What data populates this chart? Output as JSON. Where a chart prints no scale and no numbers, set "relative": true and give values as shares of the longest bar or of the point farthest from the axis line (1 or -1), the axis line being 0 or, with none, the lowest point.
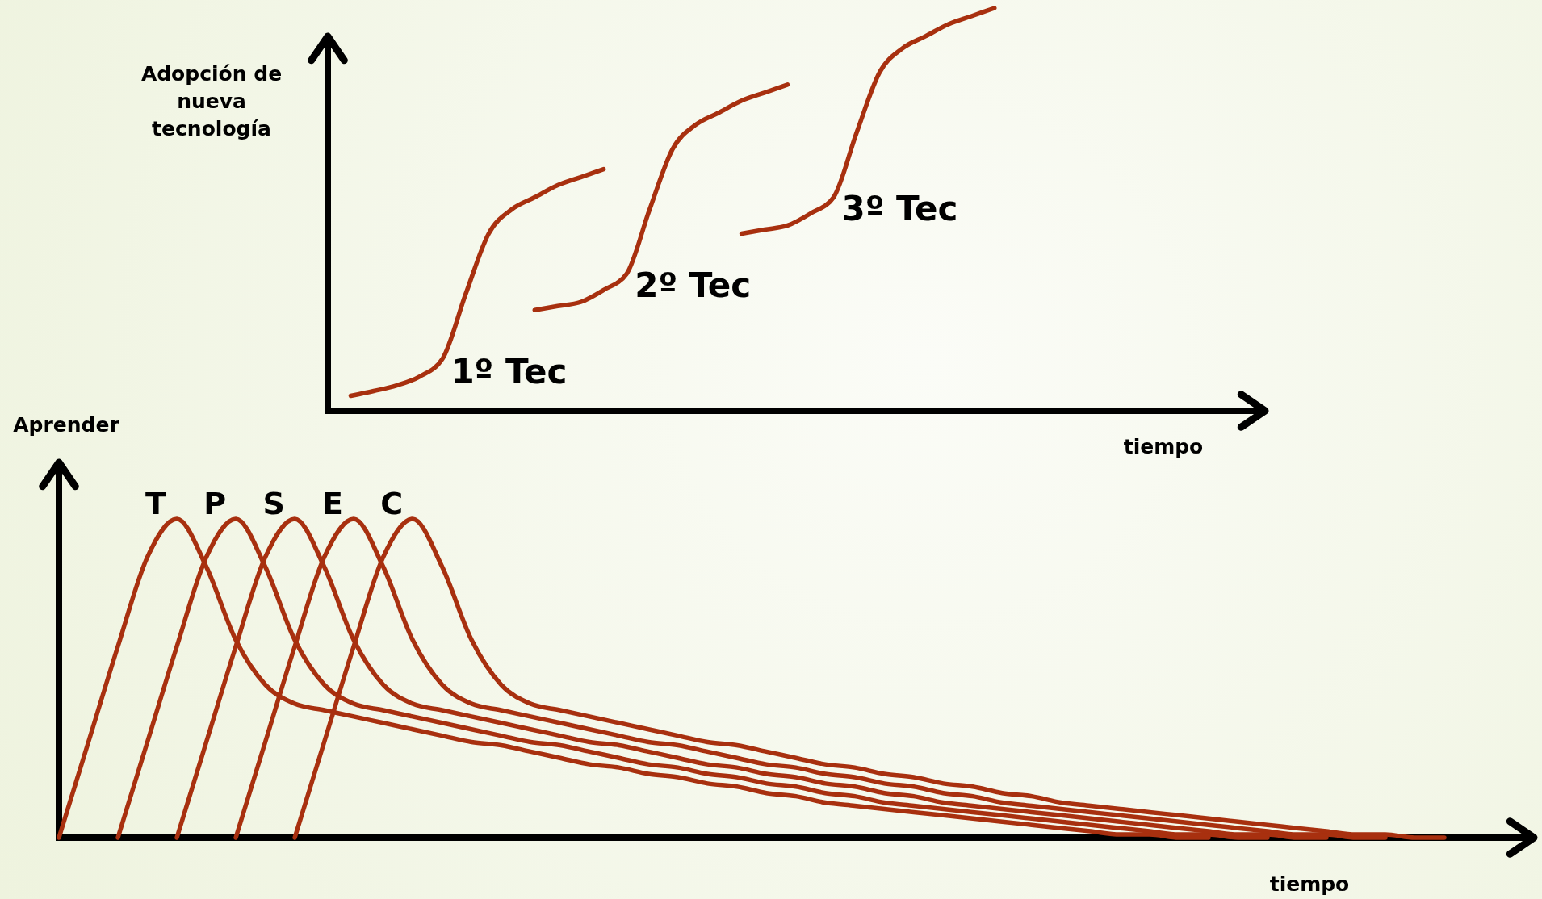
{
  "chart_data": [
    {
      "type": "line",
      "relative": true,
      "ylabel": "Adopción de nueva tecnología",
      "xlabel": "tiempo",
      "categories": [
        null,
        null,
        null,
        null,
        null,
        null,
        null,
        null,
        null,
        null,
        null,
        null,
        null,
        null,
        null,
        null,
        null,
        null,
        null,
        null,
        null,
        null,
        null,
        null,
        null,
        null,
        null,
        null,
        null,
        null,
        null,
        null,
        null,
        null,
        null,
        null,
        null,
        null,
        null,
        null,
        null
      ],
      "series": [
        {
          "name": "1º Tec",
          "color": "#a8300f",
          "values": [
            null,
            0.037,
            0.049,
            0.063,
            0.085,
            0.13,
            0.29,
            0.44,
            0.5,
            0.53,
            0.56,
            0.58,
            0.6,
            null,
            null,
            null,
            null,
            null,
            null,
            null,
            null,
            null,
            null,
            null,
            null,
            null,
            null,
            null,
            null,
            null,
            null,
            null,
            null,
            null,
            null,
            null,
            null,
            null,
            null,
            null,
            null
          ]
        },
        {
          "name": "2º Tec",
          "color": "#a8300f",
          "values": [
            null,
            null,
            null,
            null,
            null,
            null,
            null,
            null,
            null,
            0.25,
            0.26,
            0.27,
            0.3,
            0.34,
            0.5,
            0.65,
            0.71,
            0.74,
            0.77,
            0.79,
            0.81,
            null,
            null,
            null,
            null,
            null,
            null,
            null,
            null,
            null,
            null,
            null,
            null,
            null,
            null,
            null,
            null,
            null,
            null,
            null,
            null
          ]
        },
        {
          "name": "3º Tec",
          "color": "#a8300f",
          "values": [
            null,
            null,
            null,
            null,
            null,
            null,
            null,
            null,
            null,
            null,
            null,
            null,
            null,
            null,
            null,
            null,
            null,
            null,
            0.44,
            0.45,
            0.46,
            0.49,
            0.53,
            0.69,
            0.84,
            0.9,
            0.93,
            0.96,
            0.98,
            1.0,
            null,
            null,
            null,
            null,
            null,
            null,
            null,
            null,
            null,
            null,
            null
          ]
        }
      ]
    },
    {
      "type": "line",
      "relative": true,
      "ylabel": "Aprender",
      "xlabel": "tiempo",
      "categories": [
        null,
        null,
        null,
        null,
        null,
        null,
        null,
        null,
        null,
        null,
        null,
        null,
        null,
        null,
        null,
        null,
        null,
        null,
        null,
        null,
        null,
        null,
        null,
        null,
        null,
        null,
        null,
        null,
        null,
        null,
        null,
        null,
        null,
        null,
        null,
        null,
        null,
        null,
        null,
        null,
        null,
        null,
        null,
        null,
        null,
        null,
        null,
        null,
        null,
        null
      ],
      "series": [
        {
          "name": "T",
          "color": "#a8300f",
          "values": [
            0,
            0.3,
            0.6,
            0.88,
            1,
            0.85,
            0.62,
            0.48,
            0.42,
            0.4,
            0.38,
            0.36,
            0.34,
            0.32,
            0.3,
            0.29,
            0.27,
            0.25,
            0.23,
            0.22,
            0.2,
            0.19,
            0.17,
            0.16,
            0.14,
            0.13,
            0.11,
            0.1,
            0.09,
            0.08,
            0.07,
            0.06,
            0.05,
            0.04,
            0.03,
            0.02,
            0.01,
            0.01,
            0,
            0,
            null,
            null,
            null,
            null,
            null,
            null,
            null,
            null,
            null,
            null
          ]
        },
        {
          "name": "P",
          "color": "#a8300f",
          "values": [
            null,
            null,
            0,
            0.3,
            0.6,
            0.88,
            1,
            0.85,
            0.62,
            0.48,
            0.42,
            0.4,
            0.38,
            0.36,
            0.34,
            0.32,
            0.3,
            0.29,
            0.27,
            0.25,
            0.23,
            0.22,
            0.2,
            0.19,
            0.17,
            0.16,
            0.14,
            0.13,
            0.11,
            0.1,
            0.09,
            0.08,
            0.07,
            0.06,
            0.05,
            0.04,
            0.03,
            0.02,
            0.01,
            0.01,
            0,
            0,
            null,
            null,
            null,
            null,
            null,
            null,
            null,
            null
          ]
        },
        {
          "name": "S",
          "color": "#a8300f",
          "values": [
            null,
            null,
            null,
            null,
            0,
            0.3,
            0.6,
            0.88,
            1,
            0.85,
            0.62,
            0.48,
            0.42,
            0.4,
            0.38,
            0.36,
            0.34,
            0.32,
            0.3,
            0.29,
            0.27,
            0.25,
            0.23,
            0.22,
            0.2,
            0.19,
            0.17,
            0.16,
            0.14,
            0.13,
            0.11,
            0.1,
            0.09,
            0.08,
            0.07,
            0.06,
            0.05,
            0.04,
            0.03,
            0.02,
            0.01,
            0.01,
            0,
            0,
            null,
            null,
            null,
            null,
            null,
            null
          ]
        },
        {
          "name": "E",
          "color": "#a8300f",
          "values": [
            null,
            null,
            null,
            null,
            null,
            null,
            0,
            0.3,
            0.6,
            0.88,
            1,
            0.85,
            0.62,
            0.48,
            0.42,
            0.4,
            0.38,
            0.36,
            0.34,
            0.32,
            0.3,
            0.29,
            0.27,
            0.25,
            0.23,
            0.22,
            0.2,
            0.19,
            0.17,
            0.16,
            0.14,
            0.13,
            0.11,
            0.1,
            0.09,
            0.08,
            0.07,
            0.06,
            0.05,
            0.04,
            0.03,
            0.02,
            0.01,
            0.01,
            0,
            0,
            null,
            null,
            null,
            null
          ]
        },
        {
          "name": "C",
          "color": "#a8300f",
          "values": [
            null,
            null,
            null,
            null,
            null,
            null,
            null,
            null,
            0,
            0.3,
            0.6,
            0.88,
            1,
            0.85,
            0.62,
            0.48,
            0.42,
            0.4,
            0.38,
            0.36,
            0.34,
            0.32,
            0.3,
            0.29,
            0.27,
            0.25,
            0.23,
            0.22,
            0.2,
            0.19,
            0.17,
            0.16,
            0.14,
            0.13,
            0.11,
            0.1,
            0.09,
            0.08,
            0.07,
            0.06,
            0.05,
            0.04,
            0.03,
            0.02,
            0.01,
            0.01,
            0,
            0,
            null,
            null
          ]
        }
      ]
    }
  ]
}
